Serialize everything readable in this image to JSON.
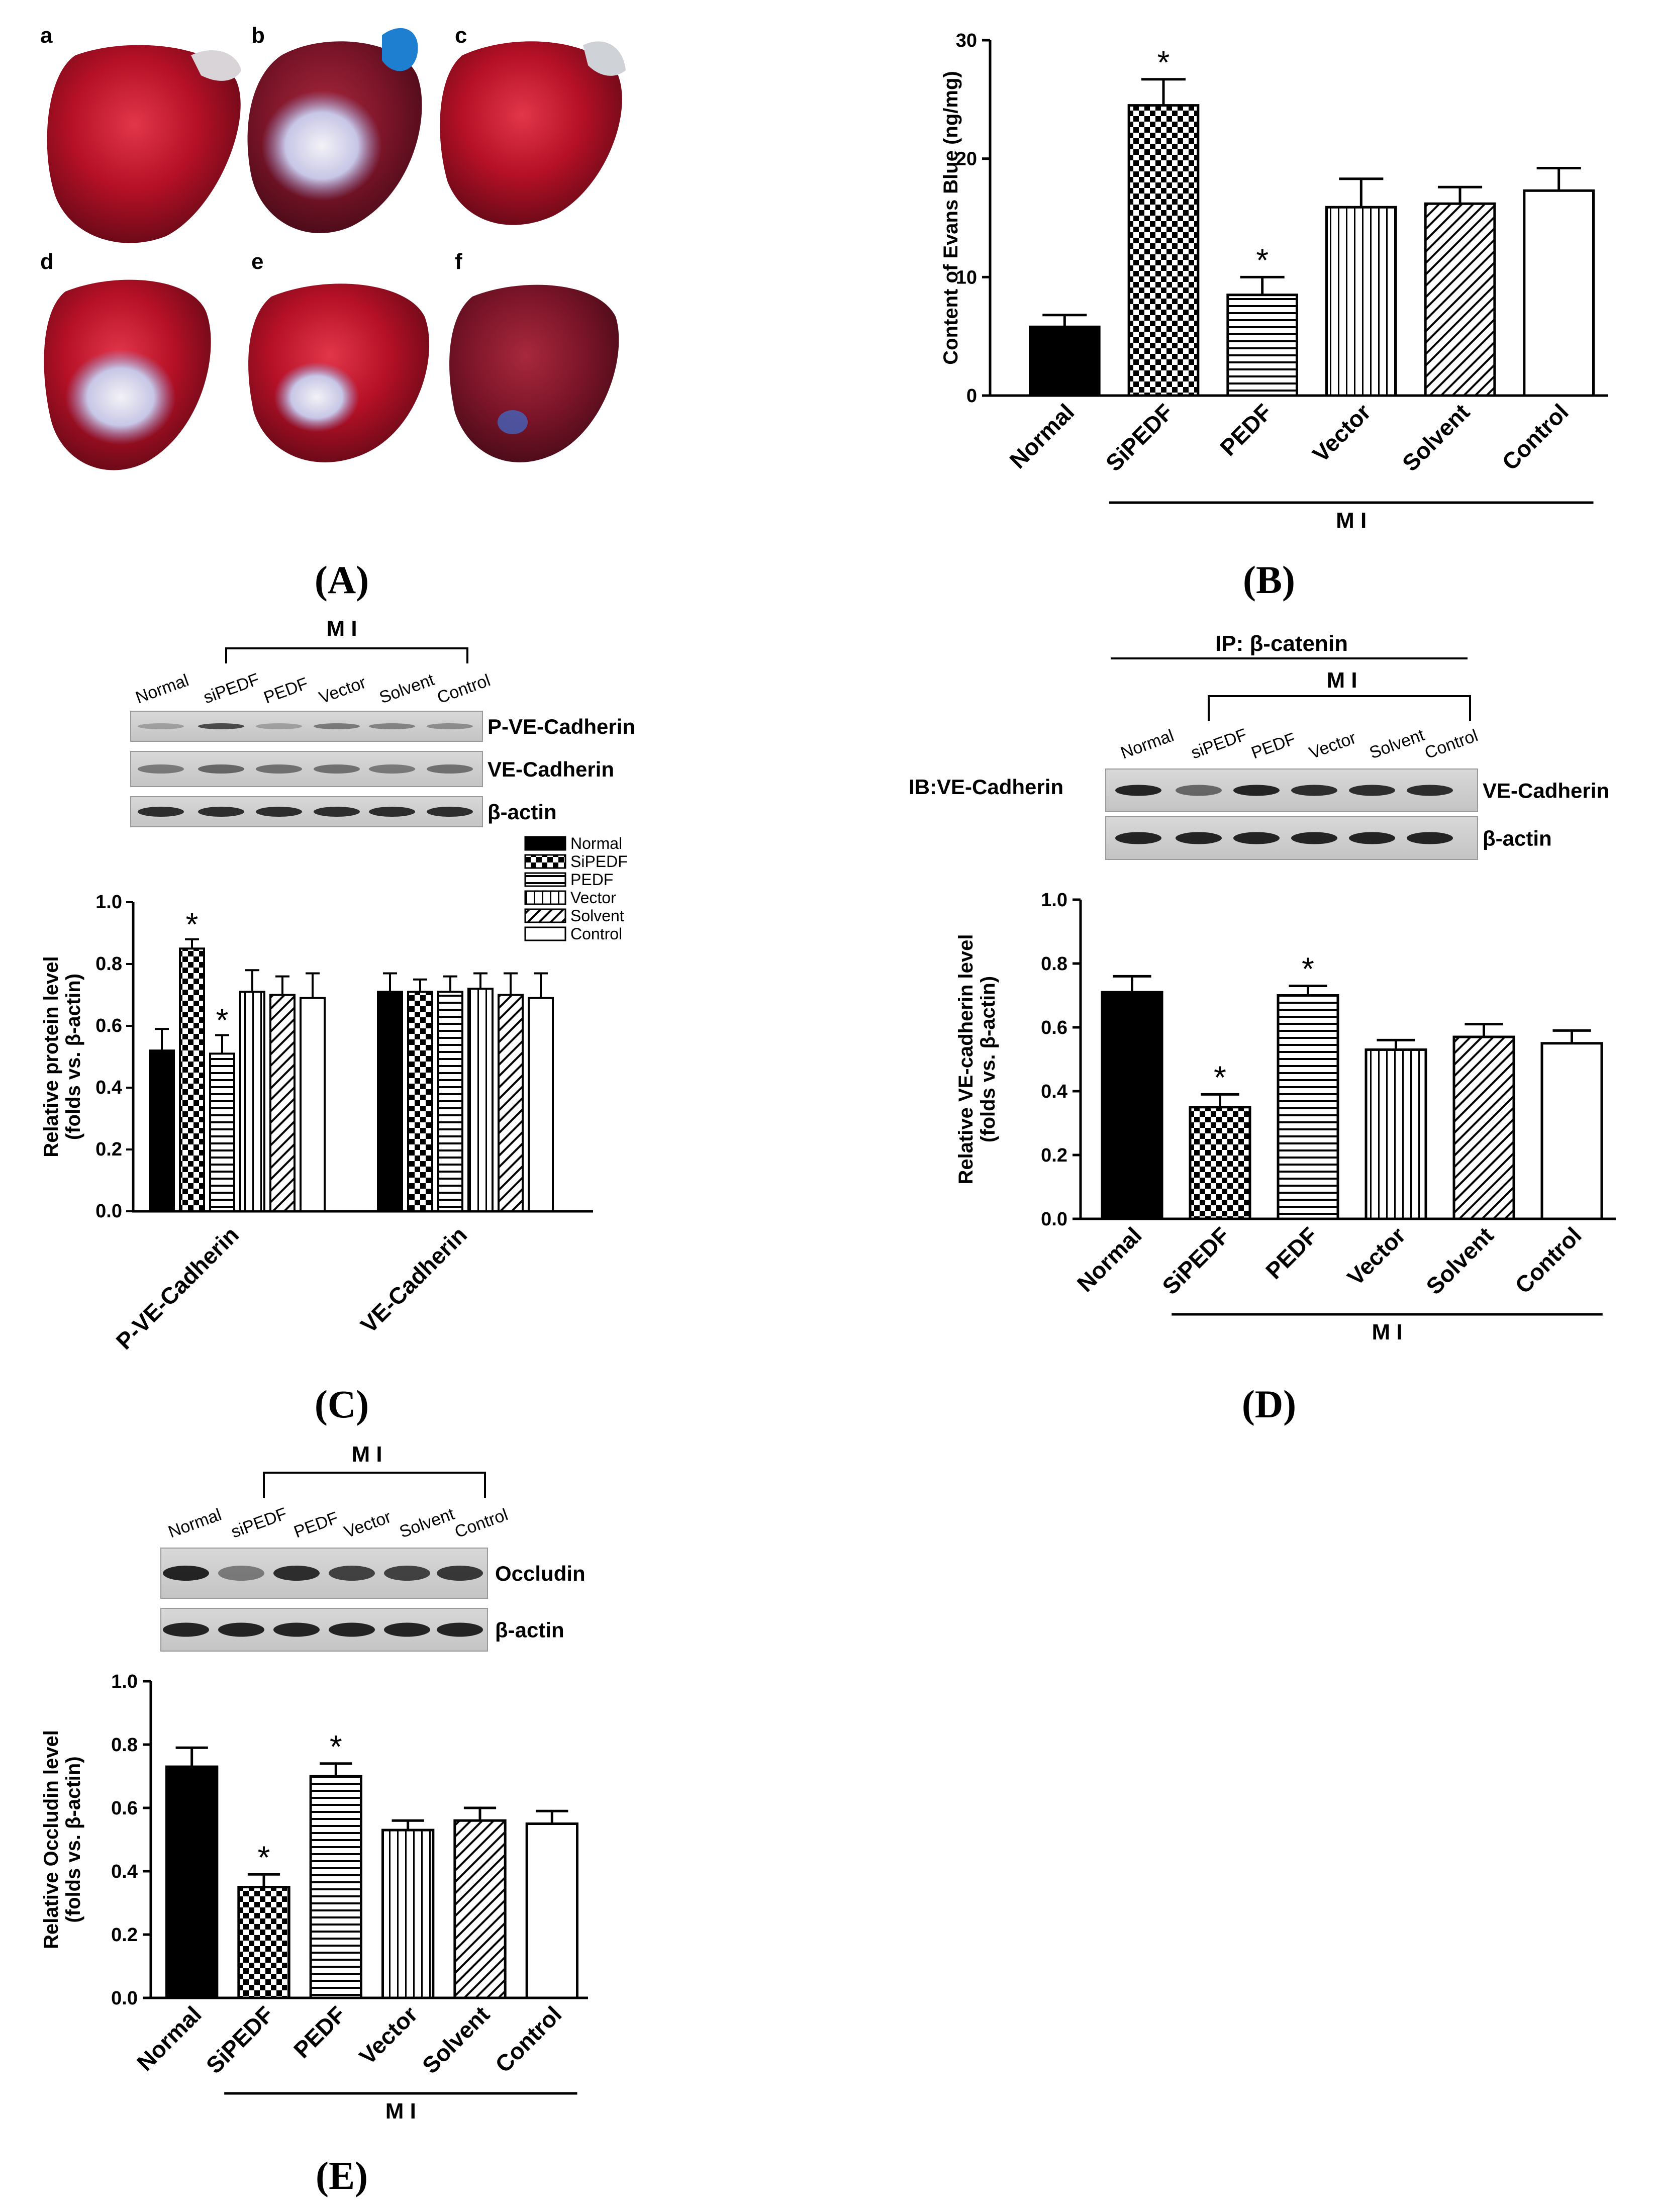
{
  "panels": {
    "A": {
      "label": "(A)",
      "sub_labels": [
        "a",
        "b",
        "c",
        "d",
        "e",
        "f"
      ]
    },
    "B": {
      "label": "(B)",
      "group_label": "M I"
    },
    "C": {
      "label": "(C)",
      "group_label": "M I",
      "lanes": [
        "Normal",
        "siPEDF",
        "PEDF",
        "Vector",
        "Solvent",
        "Control"
      ],
      "blot_rows": [
        "P-VE-Cadherin",
        "VE-Cadherin",
        "β-actin"
      ],
      "legend": [
        "Normal",
        "SiPEDF",
        "PEDF",
        "Vector",
        "Solvent",
        "Control"
      ]
    },
    "D": {
      "label": "(D)",
      "ip_label": "IP: β-catenin",
      "group_label": "M I",
      "ib_label": "IB:VE-Cadherin",
      "lanes": [
        "Normal",
        "siPEDF",
        "PEDF",
        "Vector",
        "Solvent",
        "Control"
      ],
      "blot_rows": [
        "VE-Cadherin",
        "β-actin"
      ]
    },
    "E": {
      "label": "(E)",
      "group_label": "M I",
      "lanes": [
        "Normal",
        "siPEDF",
        "PEDF",
        "Vector",
        "Solvent",
        "Control"
      ],
      "blot_rows": [
        "Occludin",
        "β-actin"
      ]
    }
  },
  "colors": {
    "bar_dark": "#000000",
    "axis": "#000000",
    "heart_red": "#b01020",
    "dye_blue": "#2a6fc9",
    "paper": "#ffffff"
  },
  "chart_data": [
    {
      "id": "B",
      "type": "bar",
      "title": "",
      "ylabel": "Content of Evans Blue (ng/mg)",
      "ylim": [
        0,
        30
      ],
      "yticks": [
        "0",
        "10",
        "20",
        "30"
      ],
      "categories": [
        "Normal",
        "SiPEDF",
        "PEDF",
        "Vector",
        "Solvent",
        "Control"
      ],
      "values": [
        5.8,
        24.5,
        8.5,
        15.9,
        16.2,
        17.3
      ],
      "errors": [
        1.0,
        2.2,
        1.5,
        2.4,
        1.4,
        1.9
      ],
      "patterns": [
        "solid",
        "checker",
        "hstripe",
        "vstripe",
        "diag",
        "empty"
      ],
      "significance": [
        "",
        "*",
        "*",
        "",
        "",
        ""
      ],
      "group_span": "M I"
    },
    {
      "id": "C",
      "type": "bar",
      "ylabel": "Relative protein level",
      "ylabel2": "(folds vs. β-actin)",
      "ylim": [
        0,
        1.0
      ],
      "yticks": [
        "0.0",
        "0.2",
        "0.4",
        "0.6",
        "0.8",
        "1.0"
      ],
      "groups": [
        "P-VE-Cadherin",
        "VE-Cadherin"
      ],
      "series": [
        {
          "name": "Normal",
          "pattern": "solid",
          "values": [
            0.52,
            0.71
          ],
          "errors": [
            0.07,
            0.06
          ],
          "sig": [
            "",
            ""
          ]
        },
        {
          "name": "SiPEDF",
          "pattern": "checker",
          "values": [
            0.85,
            0.71
          ],
          "errors": [
            0.03,
            0.04
          ],
          "sig": [
            "*",
            ""
          ]
        },
        {
          "name": "PEDF",
          "pattern": "hstripe",
          "values": [
            0.51,
            0.71
          ],
          "errors": [
            0.06,
            0.05
          ],
          "sig": [
            "*",
            ""
          ]
        },
        {
          "name": "Vector",
          "pattern": "vstripe",
          "values": [
            0.71,
            0.72
          ],
          "errors": [
            0.07,
            0.05
          ],
          "sig": [
            "",
            ""
          ]
        },
        {
          "name": "Solvent",
          "pattern": "diag",
          "values": [
            0.7,
            0.7
          ],
          "errors": [
            0.06,
            0.07
          ],
          "sig": [
            "",
            ""
          ]
        },
        {
          "name": "Control",
          "pattern": "empty",
          "values": [
            0.69,
            0.69
          ],
          "errors": [
            0.08,
            0.08
          ],
          "sig": [
            "",
            ""
          ]
        }
      ]
    },
    {
      "id": "D",
      "type": "bar",
      "ylabel": "Relative VE-cadherin level",
      "ylabel2": "(folds vs. β-actin)",
      "ylim": [
        0,
        1.0
      ],
      "yticks": [
        "0.0",
        "0.2",
        "0.4",
        "0.6",
        "0.8",
        "1.0"
      ],
      "categories": [
        "Normal",
        "SiPEDF",
        "PEDF",
        "Vector",
        "Solvent",
        "Control"
      ],
      "values": [
        0.71,
        0.35,
        0.7,
        0.53,
        0.57,
        0.55
      ],
      "errors": [
        0.05,
        0.04,
        0.03,
        0.03,
        0.04,
        0.04
      ],
      "patterns": [
        "solid",
        "checker",
        "hstripe",
        "vstripe",
        "diag",
        "empty"
      ],
      "significance": [
        "",
        "*",
        "*",
        "",
        "",
        ""
      ],
      "group_span": "M I"
    },
    {
      "id": "E",
      "type": "bar",
      "ylabel": "Relative Occludin level",
      "ylabel2": "(folds vs. β-actin)",
      "ylim": [
        0,
        1.0
      ],
      "yticks": [
        "0.0",
        "0.2",
        "0.4",
        "0.6",
        "0.8",
        "1.0"
      ],
      "categories": [
        "Normal",
        "SiPEDF",
        "PEDF",
        "Vector",
        "Solvent",
        "Control"
      ],
      "values": [
        0.73,
        0.35,
        0.7,
        0.53,
        0.56,
        0.55
      ],
      "errors": [
        0.06,
        0.04,
        0.04,
        0.03,
        0.04,
        0.04
      ],
      "patterns": [
        "solid",
        "checker",
        "hstripe",
        "vstripe",
        "diag",
        "empty"
      ],
      "significance": [
        "",
        "*",
        "*",
        "",
        "",
        ""
      ],
      "group_span": "M I"
    }
  ]
}
